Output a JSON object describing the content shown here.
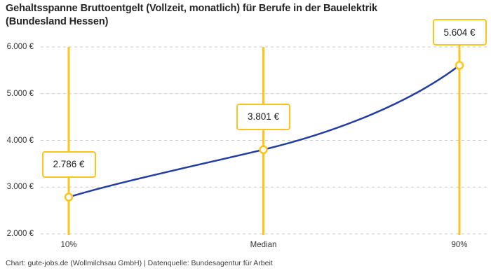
{
  "header": {
    "line1": "Gehaltsspanne Bruttoentgelt (Vollzeit, monatlich) für Berufe in der Bauelektrik",
    "line2": "(Bundesland Hessen)"
  },
  "chart_data": {
    "type": "line",
    "title": "Gehaltsspanne Bruttoentgelt (Vollzeit, monatlich) für Berufe in der Bauelektrik (Bundesland Hessen)",
    "footer": "Chart: gute-jobs.de (Wollmilchsau GmbH) | Datenquelle: Bundesagentur für Arbeit",
    "categories": [
      "10%",
      "Median",
      "90%"
    ],
    "values": [
      2786,
      3801,
      5604
    ],
    "value_labels": [
      "2.786 €",
      "3.801 €",
      "5.604 €"
    ],
    "ylim": [
      2000,
      6000
    ],
    "y_ticks": [
      {
        "value": 2000,
        "label": "2.000 €"
      },
      {
        "value": 3000,
        "label": "3.000 €"
      },
      {
        "value": 4000,
        "label": "4.000 €"
      },
      {
        "value": 5000,
        "label": "5.000 €"
      },
      {
        "value": 6000,
        "label": "6.000 €"
      }
    ],
    "grid": "horizontal-dashed",
    "legend": "none",
    "colors": {
      "line": "#213ca4",
      "accent": "#fcc41d",
      "marker_fill": "#ffffff",
      "grid": "#c9c9c9",
      "title_text": "#242424",
      "tick_text": "#333333",
      "footer_text": "#3d3d3d"
    }
  }
}
